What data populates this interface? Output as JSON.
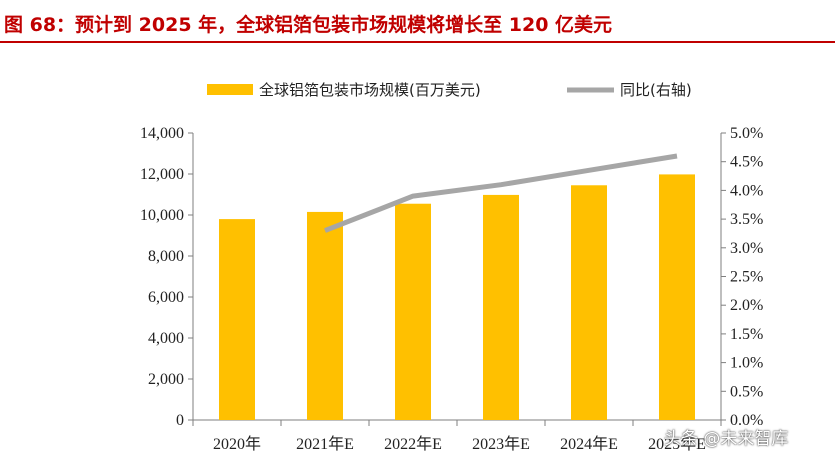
{
  "figure": {
    "title": "图 68：预计到 2025 年，全球铝箔包装市场规模将增长至 120 亿美元",
    "watermark": "头条 @未来智库"
  },
  "colors": {
    "bar": "#ffc000",
    "line": "#a6a6a6",
    "title": "#c00000"
  },
  "chart_data": {
    "type": "bar",
    "categories": [
      "2020年",
      "2021年E",
      "2022年E",
      "2023年E",
      "2024年E",
      "2025年E"
    ],
    "series": [
      {
        "name": "全球铝箔包装市场规模(百万美元)",
        "type": "bar",
        "axis": "left",
        "values": [
          9800,
          10150,
          10550,
          10980,
          11450,
          11980
        ]
      },
      {
        "name": "同比(右轴)",
        "type": "line",
        "axis": "right",
        "values": [
          null,
          3.3,
          3.9,
          4.1,
          4.35,
          4.6
        ]
      }
    ],
    "y_left": {
      "lim": [
        0,
        14000
      ],
      "ticks": [
        "0",
        "2,000",
        "4,000",
        "6,000",
        "8,000",
        "10,000",
        "12,000",
        "14,000"
      ]
    },
    "y_right": {
      "lim": [
        0,
        5
      ],
      "ticks": [
        "0.0%",
        "0.5%",
        "1.0%",
        "1.5%",
        "2.0%",
        "2.5%",
        "3.0%",
        "3.5%",
        "4.0%",
        "4.5%",
        "5.0%"
      ]
    },
    "legend_position": "top",
    "grid": false
  }
}
